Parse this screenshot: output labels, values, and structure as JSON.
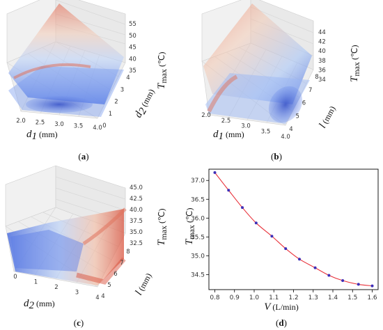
{
  "panels": [
    {
      "id": "a",
      "label_open": "(",
      "label_letter": "a",
      "label_close": ")",
      "x_var": "d",
      "x_sub": "1",
      "x_unit": " (mm)",
      "x_ticks": [
        "2.0",
        "2.5",
        "3.0",
        "3.5",
        "4.0"
      ],
      "y_var": "d",
      "y_sub": "2",
      "y_unit": " (mm)",
      "y_ticks": [
        "0",
        "1",
        "2",
        "3",
        "4"
      ],
      "z_var": "T",
      "z_sub": "max",
      "z_unit": " (℃)",
      "z_ticks": [
        "35",
        "40",
        "45",
        "50",
        "55"
      ]
    },
    {
      "id": "b",
      "label_open": "(",
      "label_letter": "b",
      "label_close": ")",
      "x_var": "d",
      "x_sub": "1",
      "x_unit": " (mm)",
      "x_ticks": [
        "2.0",
        "2.5",
        "3.0",
        "3.5",
        "4.0"
      ],
      "y_var": "l",
      "y_unit": " (mm)",
      "y_ticks": [
        "4",
        "5",
        "6",
        "7",
        "8"
      ],
      "z_var": "T",
      "z_sub": "max",
      "z_unit": " (℃)",
      "z_ticks": [
        "34",
        "36",
        "38",
        "40",
        "42",
        "44"
      ]
    },
    {
      "id": "c",
      "label_open": "(",
      "label_letter": "c",
      "label_close": ")",
      "x_var": "d",
      "x_sub": "2",
      "x_unit": " (mm)",
      "x_ticks": [
        "0",
        "1",
        "2",
        "3",
        "4"
      ],
      "y_var": "l",
      "y_unit": " (mm)",
      "y_ticks": [
        "4",
        "5",
        "6",
        "7",
        "8"
      ],
      "z_var": "T",
      "z_sub": "max",
      "z_unit": " (℃)",
      "z_ticks": [
        "32.5",
        "35.0",
        "37.5",
        "40.0",
        "42.5",
        "45.0"
      ]
    },
    {
      "id": "d",
      "label_open": "(",
      "label_letter": "d",
      "label_close": ")"
    }
  ],
  "chart_data": [
    {
      "type": "surface3d",
      "panel": "a",
      "xlim": [
        2.0,
        4.0
      ],
      "ylim": [
        0,
        4
      ],
      "zlim": [
        35,
        55
      ],
      "colormap": "coolwarm"
    },
    {
      "type": "surface3d",
      "panel": "b",
      "xlim": [
        2.0,
        4.0
      ],
      "ylim": [
        4,
        8
      ],
      "zlim": [
        34,
        44
      ],
      "colormap": "coolwarm"
    },
    {
      "type": "surface3d",
      "panel": "c",
      "xlim": [
        0,
        4
      ],
      "ylim": [
        4,
        8
      ],
      "zlim": [
        32.5,
        45.0
      ],
      "colormap": "coolwarm"
    },
    {
      "type": "line",
      "panel": "d",
      "xlabel_var": "V",
      "xlabel_unit": " (L/min)",
      "ylabel_var": "T",
      "ylabel_sub": "max",
      "ylabel_unit": " (℃)",
      "xlim": [
        0.77,
        1.63
      ],
      "ylim": [
        34.1,
        37.3
      ],
      "x_ticks": [
        0.8,
        0.9,
        1.0,
        1.1,
        1.2,
        1.3,
        1.4,
        1.5,
        1.6
      ],
      "x_tick_labels": [
        "0.8",
        "0.9",
        "1.0",
        "1.1",
        "1.2",
        "1.3",
        "1.4",
        "1.5",
        "1.6"
      ],
      "y_ticks": [
        34.5,
        35.0,
        35.5,
        36.0,
        36.5,
        37.0
      ],
      "y_tick_labels": [
        "34.5",
        "35.0",
        "35.5",
        "36.0",
        "36.5",
        "37.0"
      ],
      "line_color": "#e8313a",
      "marker_color": "#3d2fb8",
      "x": [
        0.8,
        0.87,
        0.94,
        1.01,
        1.09,
        1.16,
        1.23,
        1.31,
        1.38,
        1.45,
        1.53,
        1.6
      ],
      "y": [
        37.21,
        36.74,
        36.28,
        35.87,
        35.52,
        35.19,
        34.91,
        34.68,
        34.48,
        34.34,
        34.24,
        34.2
      ]
    }
  ]
}
